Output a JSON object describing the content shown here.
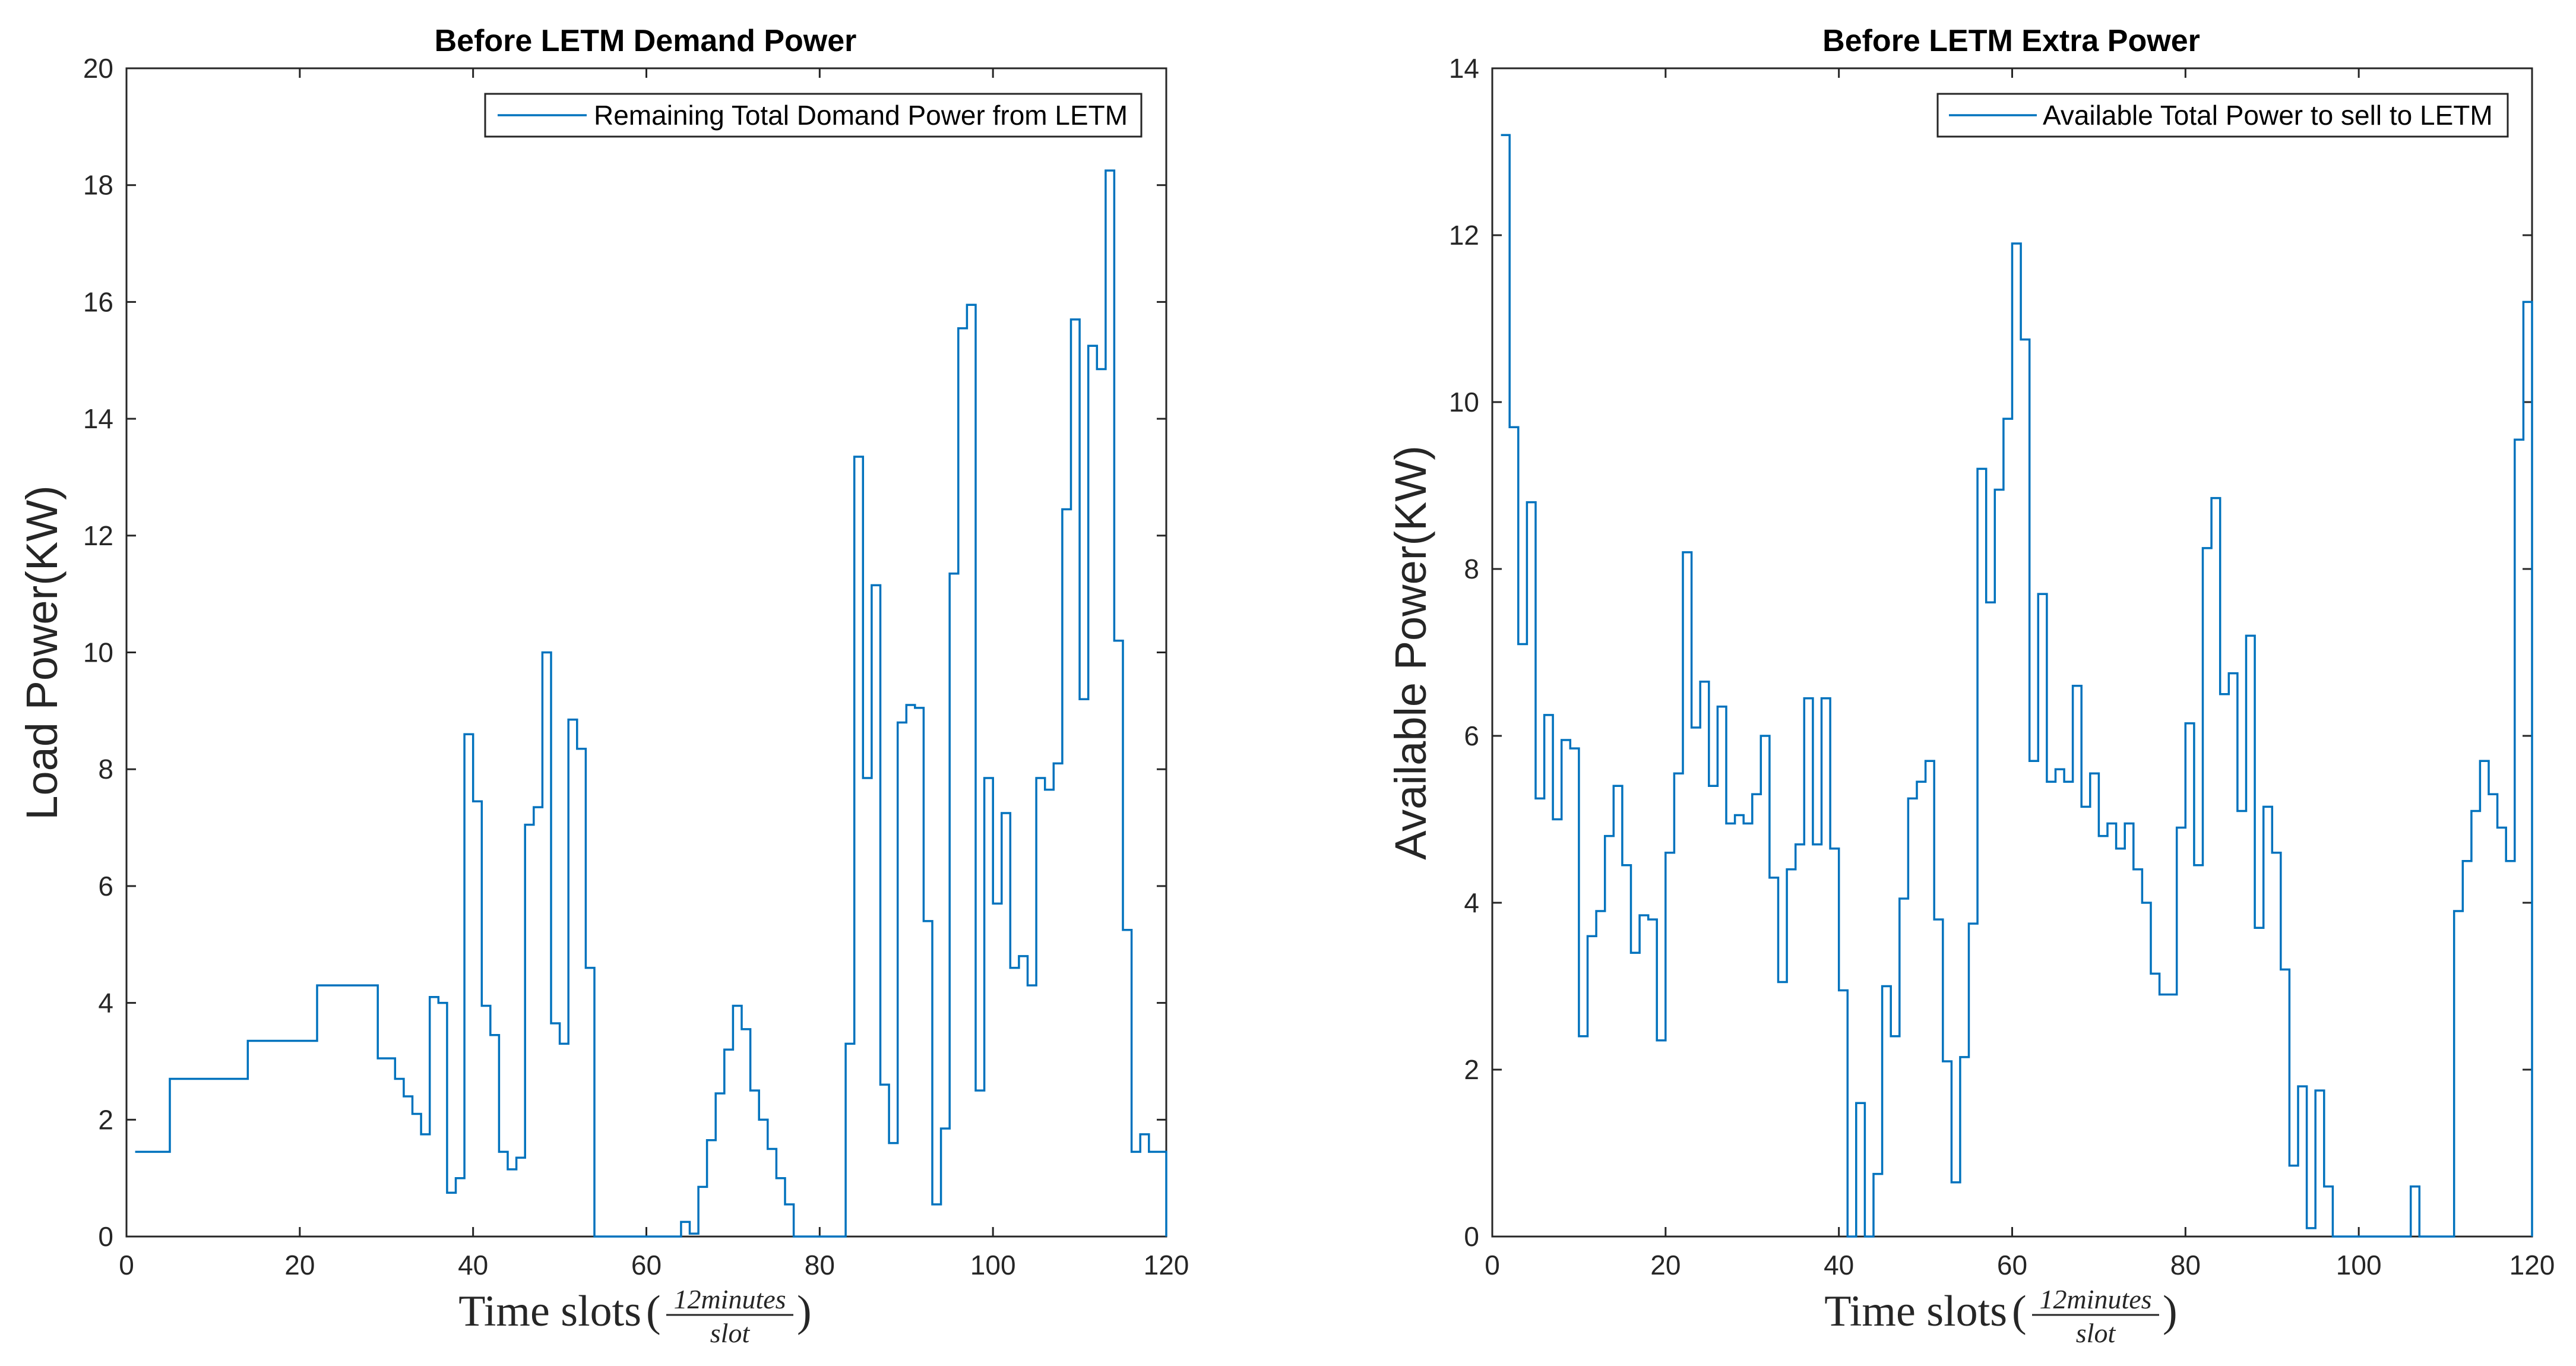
{
  "chart_data": [
    {
      "type": "line",
      "style": "stairs",
      "title": "Before LETM Demand Power",
      "ylabel": "Load Power(KW)",
      "xlabel": "Time slots",
      "xlabel_unit_numerator": "12minutes",
      "xlabel_unit_denominator": "slot",
      "xlim": [
        0,
        120
      ],
      "ylim": [
        0,
        20
      ],
      "xticks": [
        0,
        20,
        40,
        60,
        80,
        100,
        120
      ],
      "yticks": [
        0,
        2,
        4,
        6,
        8,
        10,
        12,
        14,
        16,
        18,
        20
      ],
      "legend_position": "top-right",
      "series": [
        {
          "name": "Remaining Total Domand Power from LETM",
          "color": "#0072BD",
          "points": [
            [
              1,
              1.45
            ],
            [
              5,
              2.7
            ],
            [
              14,
              3.35
            ],
            [
              22,
              4.3
            ],
            [
              29,
              3.05
            ],
            [
              31,
              2.7
            ],
            [
              32,
              2.4
            ],
            [
              33,
              2.1
            ],
            [
              34,
              1.75
            ],
            [
              35,
              4.1
            ],
            [
              36,
              4.0
            ],
            [
              37,
              0.75
            ],
            [
              38,
              1.0
            ],
            [
              39,
              8.6
            ],
            [
              40,
              7.45
            ],
            [
              41,
              3.95
            ],
            [
              42,
              3.45
            ],
            [
              43,
              1.45
            ],
            [
              44,
              1.15
            ],
            [
              45,
              1.35
            ],
            [
              46,
              7.05
            ],
            [
              47,
              7.35
            ],
            [
              48,
              10.0
            ],
            [
              49,
              3.65
            ],
            [
              50,
              3.3
            ],
            [
              51,
              8.85
            ],
            [
              52,
              8.35
            ],
            [
              53,
              4.6
            ],
            [
              54,
              0.0
            ],
            [
              64,
              0.25
            ],
            [
              65,
              0.05
            ],
            [
              66,
              0.85
            ],
            [
              67,
              1.65
            ],
            [
              68,
              2.45
            ],
            [
              69,
              3.2
            ],
            [
              70,
              3.95
            ],
            [
              71,
              3.55
            ],
            [
              72,
              2.5
            ],
            [
              73,
              2.0
            ],
            [
              74,
              1.5
            ],
            [
              75,
              1.0
            ],
            [
              76,
              0.55
            ],
            [
              77,
              0.0
            ],
            [
              83,
              3.3
            ],
            [
              84,
              13.35
            ],
            [
              85,
              7.85
            ],
            [
              86,
              11.15
            ],
            [
              87,
              2.6
            ],
            [
              88,
              1.6
            ],
            [
              89,
              8.8
            ],
            [
              90,
              9.1
            ],
            [
              91,
              9.05
            ],
            [
              92,
              5.4
            ],
            [
              93,
              0.55
            ],
            [
              94,
              1.85
            ],
            [
              95,
              11.35
            ],
            [
              96,
              15.55
            ],
            [
              97,
              15.95
            ],
            [
              98,
              2.5
            ],
            [
              99,
              7.85
            ],
            [
              100,
              5.7
            ],
            [
              101,
              7.25
            ],
            [
              102,
              4.6
            ],
            [
              103,
              4.8
            ],
            [
              104,
              4.3
            ],
            [
              105,
              7.85
            ],
            [
              106,
              7.65
            ],
            [
              107,
              8.1
            ],
            [
              108,
              12.45
            ],
            [
              109,
              15.7
            ],
            [
              110,
              9.2
            ],
            [
              111,
              15.25
            ],
            [
              112,
              14.85
            ],
            [
              113,
              18.25
            ],
            [
              114,
              10.2
            ],
            [
              115,
              5.25
            ],
            [
              116,
              1.45
            ],
            [
              117,
              1.75
            ],
            [
              118,
              1.45
            ],
            [
              120,
              0.0
            ]
          ]
        }
      ]
    },
    {
      "type": "line",
      "style": "stairs",
      "title": "Before LETM Extra Power",
      "ylabel": "Available Power(KW)",
      "xlabel": "Time slots",
      "xlabel_unit_numerator": "12minutes",
      "xlabel_unit_denominator": "slot",
      "xlim": [
        0,
        120
      ],
      "ylim": [
        0,
        14
      ],
      "xticks": [
        0,
        20,
        40,
        60,
        80,
        100,
        120
      ],
      "yticks": [
        0,
        2,
        4,
        6,
        8,
        10,
        12,
        14
      ],
      "legend_position": "top-right",
      "series": [
        {
          "name": "Available Total Power to sell to LETM",
          "color": "#0072BD",
          "points": [
            [
              1,
              13.2
            ],
            [
              2,
              9.7
            ],
            [
              3,
              7.1
            ],
            [
              4,
              8.8
            ],
            [
              5,
              5.25
            ],
            [
              6,
              6.25
            ],
            [
              7,
              5.0
            ],
            [
              8,
              5.95
            ],
            [
              9,
              5.85
            ],
            [
              10,
              2.4
            ],
            [
              11,
              3.6
            ],
            [
              12,
              3.9
            ],
            [
              13,
              4.8
            ],
            [
              14,
              5.4
            ],
            [
              15,
              4.45
            ],
            [
              16,
              3.4
            ],
            [
              17,
              3.85
            ],
            [
              18,
              3.8
            ],
            [
              19,
              2.35
            ],
            [
              20,
              4.6
            ],
            [
              21,
              5.55
            ],
            [
              22,
              8.2
            ],
            [
              23,
              6.1
            ],
            [
              24,
              6.65
            ],
            [
              25,
              5.4
            ],
            [
              26,
              6.35
            ],
            [
              27,
              4.95
            ],
            [
              28,
              5.05
            ],
            [
              29,
              4.95
            ],
            [
              30,
              5.3
            ],
            [
              31,
              6.0
            ],
            [
              32,
              4.3
            ],
            [
              33,
              3.05
            ],
            [
              34,
              4.4
            ],
            [
              35,
              4.7
            ],
            [
              36,
              6.45
            ],
            [
              37,
              4.7
            ],
            [
              38,
              6.45
            ],
            [
              39,
              4.65
            ],
            [
              40,
              2.95
            ],
            [
              41,
              0.0
            ],
            [
              42,
              1.6
            ],
            [
              43,
              0.0
            ],
            [
              44,
              0.75
            ],
            [
              45,
              3.0
            ],
            [
              46,
              2.4
            ],
            [
              47,
              4.05
            ],
            [
              48,
              5.25
            ],
            [
              49,
              5.45
            ],
            [
              50,
              5.7
            ],
            [
              51,
              3.8
            ],
            [
              52,
              2.1
            ],
            [
              53,
              0.65
            ],
            [
              54,
              2.15
            ],
            [
              55,
              3.75
            ],
            [
              56,
              9.2
            ],
            [
              57,
              7.6
            ],
            [
              58,
              8.95
            ],
            [
              59,
              9.8
            ],
            [
              60,
              11.9
            ],
            [
              61,
              10.75
            ],
            [
              62,
              5.7
            ],
            [
              63,
              7.7
            ],
            [
              64,
              5.45
            ],
            [
              65,
              5.6
            ],
            [
              66,
              5.45
            ],
            [
              67,
              6.6
            ],
            [
              68,
              5.15
            ],
            [
              69,
              5.55
            ],
            [
              70,
              4.8
            ],
            [
              71,
              4.95
            ],
            [
              72,
              4.65
            ],
            [
              73,
              4.95
            ],
            [
              74,
              4.4
            ],
            [
              75,
              4.0
            ],
            [
              76,
              3.15
            ],
            [
              77,
              2.9
            ],
            [
              79,
              4.9
            ],
            [
              80,
              6.15
            ],
            [
              81,
              4.45
            ],
            [
              82,
              8.25
            ],
            [
              83,
              8.85
            ],
            [
              84,
              6.5
            ],
            [
              85,
              6.75
            ],
            [
              86,
              5.1
            ],
            [
              87,
              7.2
            ],
            [
              88,
              3.7
            ],
            [
              89,
              5.15
            ],
            [
              90,
              4.6
            ],
            [
              91,
              3.2
            ],
            [
              92,
              0.85
            ],
            [
              93,
              1.8
            ],
            [
              94,
              0.1
            ],
            [
              95,
              1.75
            ],
            [
              96,
              0.6
            ],
            [
              97,
              0.0
            ],
            [
              106,
              0.6
            ],
            [
              107,
              0.0
            ],
            [
              111,
              3.9
            ],
            [
              112,
              4.5
            ],
            [
              113,
              5.1
            ],
            [
              114,
              5.7
            ],
            [
              115,
              5.3
            ],
            [
              116,
              4.9
            ],
            [
              117,
              4.5
            ],
            [
              118,
              9.55
            ],
            [
              119,
              11.2
            ],
            [
              120,
              0.0
            ]
          ]
        }
      ]
    }
  ]
}
